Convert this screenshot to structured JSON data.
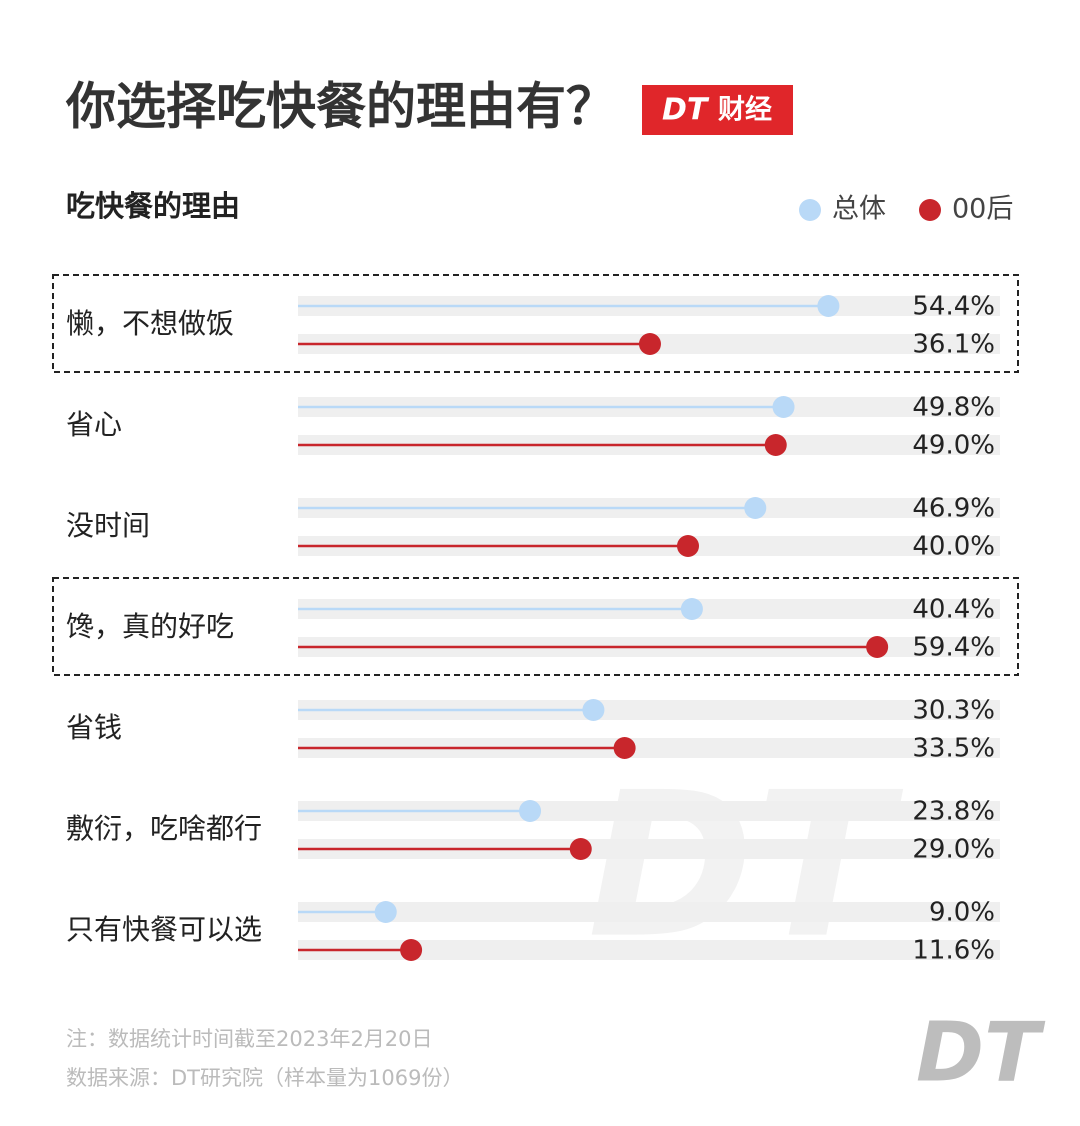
{
  "chart_data": {
    "type": "dumbbell",
    "title": "你选择吃快餐的理由有？",
    "logo": {
      "brand": "DT",
      "name": "财经"
    },
    "subtitle": "吃快餐的理由",
    "categories": [
      "懒，不想做饭",
      "省心",
      "没时间",
      "馋，真的好吃",
      "省钱",
      "敷衍，吃啥都行",
      "只有快餐可以选"
    ],
    "series": [
      {
        "name": "总体",
        "color": "#b9d9f7",
        "values": [
          54.4,
          49.8,
          46.9,
          40.4,
          30.3,
          23.8,
          9.0
        ],
        "value_labels": [
          "54.4%",
          "49.8%",
          "46.9%",
          "40.4%",
          "30.3%",
          "23.8%",
          "9.0%"
        ]
      },
      {
        "name": "00后",
        "color": "#c8262c",
        "values": [
          36.1,
          49.0,
          40.0,
          59.4,
          33.5,
          29.0,
          11.6
        ],
        "value_labels": [
          "36.1%",
          "49.0%",
          "40.0%",
          "59.4%",
          "33.5%",
          "29.0%",
          "11.6%"
        ]
      }
    ],
    "xlim": [
      0,
      72
    ],
    "highlight": [
      0,
      3
    ],
    "notes": [
      "注：数据统计时间截至2023年2月20日",
      "数据来源：DT研究院（样本量为1069份）"
    ],
    "watermark": "DT",
    "footer_logo": "DT"
  }
}
